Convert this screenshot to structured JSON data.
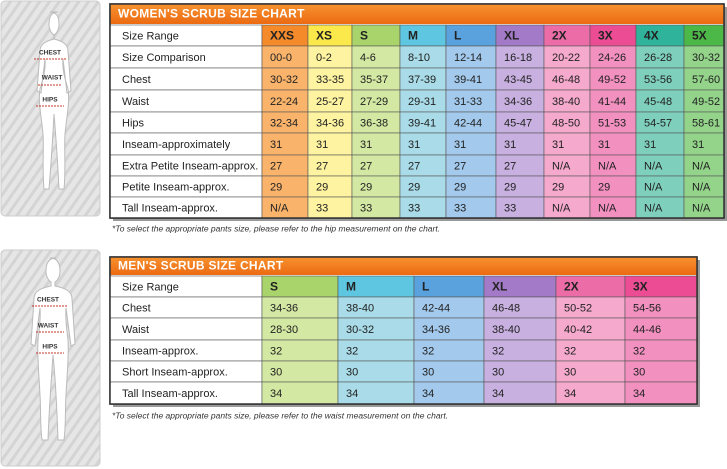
{
  "women": {
    "title": "WOMEN'S SCRUB SIZE CHART",
    "header": [
      "Size Range",
      "XXS",
      "XS",
      "S",
      "M",
      "L",
      "XL",
      "2X",
      "3X",
      "4X",
      "5X"
    ],
    "rows": [
      [
        "Size Comparison",
        "00-0",
        "0-2",
        "4-6",
        "8-10",
        "12-14",
        "16-18",
        "20-22",
        "24-26",
        "26-28",
        "30-32"
      ],
      [
        "Chest",
        "30-32",
        "33-35",
        "35-37",
        "37-39",
        "39-41",
        "43-45",
        "46-48",
        "49-52",
        "53-56",
        "57-60"
      ],
      [
        "Waist",
        "22-24",
        "25-27",
        "27-29",
        "29-31",
        "31-33",
        "34-36",
        "38-40",
        "41-44",
        "45-48",
        "49-52"
      ],
      [
        "Hips",
        "32-34",
        "34-36",
        "36-38",
        "39-41",
        "42-44",
        "45-47",
        "48-50",
        "51-53",
        "54-57",
        "58-61"
      ],
      [
        "Inseam-approximately",
        "31",
        "31",
        "31",
        "31",
        "31",
        "31",
        "31",
        "31",
        "31",
        "31"
      ],
      [
        "Extra Petite Inseam-approx.",
        "27",
        "27",
        "27",
        "27",
        "27",
        "27",
        "N/A",
        "N/A",
        "N/A",
        "N/A"
      ],
      [
        "Petite Inseam-approx.",
        "29",
        "29",
        "29",
        "29",
        "29",
        "29",
        "29",
        "29",
        "N/A",
        "N/A"
      ],
      [
        "Tall Inseam-approx.",
        "N/A",
        "33",
        "33",
        "33",
        "33",
        "33",
        "N/A",
        "N/A",
        "N/A",
        "N/A"
      ]
    ],
    "footnote": "*To select the appropriate pants size, please refer to the hip measurement on the chart.",
    "figure_labels": [
      "CHEST",
      "WAIST",
      "HIPS"
    ]
  },
  "men": {
    "title": "MEN'S SCRUB SIZE CHART",
    "header": [
      "Size Range",
      "S",
      "M",
      "L",
      "XL",
      "2X",
      "3X"
    ],
    "rows": [
      [
        "Chest",
        "34-36",
        "38-40",
        "42-44",
        "46-48",
        "50-52",
        "54-56"
      ],
      [
        "Waist",
        "28-30",
        "30-32",
        "34-36",
        "38-40",
        "40-42",
        "44-46"
      ],
      [
        "Inseam-approx.",
        "32",
        "32",
        "32",
        "32",
        "32",
        "32"
      ],
      [
        "Short Inseam-approx.",
        "30",
        "30",
        "30",
        "30",
        "30",
        "30"
      ],
      [
        "Tall Inseam-approx.",
        "34",
        "34",
        "34",
        "34",
        "34",
        "34"
      ]
    ],
    "footnote": "*To select the appropriate pants size, please refer to the waist measurement on the chart.",
    "figure_labels": [
      "CHEST",
      "WAIST",
      "HIPS"
    ]
  }
}
